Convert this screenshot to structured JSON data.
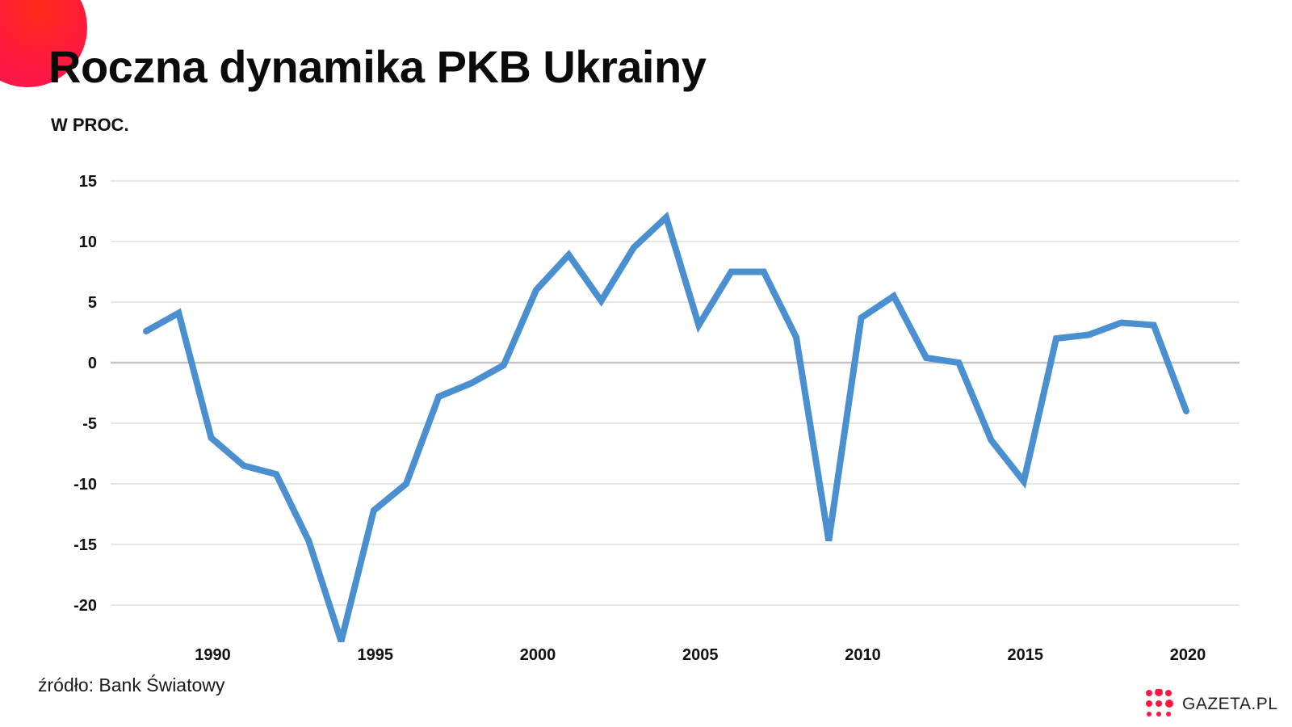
{
  "title": "Roczna dynamika PKB Ukrainy",
  "subtitle": "W PROC.",
  "source": "źródło: Bank Światowy",
  "brand": "GAZETA.PL",
  "colors": {
    "line": "#4a8fcf",
    "accent": "#ff1744",
    "grid": "#e6e6e6",
    "zero": "#c4c4c4"
  },
  "chart_data": {
    "type": "line",
    "title": "Roczna dynamika PKB Ukrainy",
    "ylabel": "W PROC.",
    "xlabel": "",
    "ylim": [
      -23,
      15
    ],
    "y_ticks": [
      15,
      10,
      5,
      0,
      -5,
      -10,
      -15,
      -20
    ],
    "x_ticks": [
      1990,
      1995,
      2000,
      2005,
      2010,
      2015,
      2020
    ],
    "grid": true,
    "series": [
      {
        "points": [
          [
            1988,
            2.6
          ],
          [
            1989,
            4.1
          ],
          [
            1990,
            -6.2
          ],
          [
            1991,
            -8.5
          ],
          [
            1992,
            -9.2
          ],
          [
            1993,
            -14.7
          ],
          [
            1994,
            -23.0
          ],
          [
            1995,
            -12.2
          ],
          [
            1996,
            -10.0
          ],
          [
            1997,
            -2.8
          ],
          [
            1998,
            -1.7
          ],
          [
            1999,
            -0.2
          ],
          [
            2000,
            6.0
          ],
          [
            2001,
            8.9
          ],
          [
            2002,
            5.1
          ],
          [
            2003,
            9.5
          ],
          [
            2004,
            12.0
          ],
          [
            2005,
            3.1
          ],
          [
            2006,
            7.5
          ],
          [
            2007,
            7.5
          ],
          [
            2008,
            2.1
          ],
          [
            2009,
            -14.7
          ],
          [
            2010,
            3.7
          ],
          [
            2011,
            5.5
          ],
          [
            2012,
            0.4
          ],
          [
            2013,
            0.0
          ],
          [
            2014,
            -6.4
          ],
          [
            2015,
            -9.8
          ],
          [
            2016,
            2.0
          ],
          [
            2017,
            2.3
          ],
          [
            2018,
            3.3
          ],
          [
            2019,
            3.1
          ],
          [
            2020,
            -4.0
          ]
        ]
      }
    ]
  }
}
